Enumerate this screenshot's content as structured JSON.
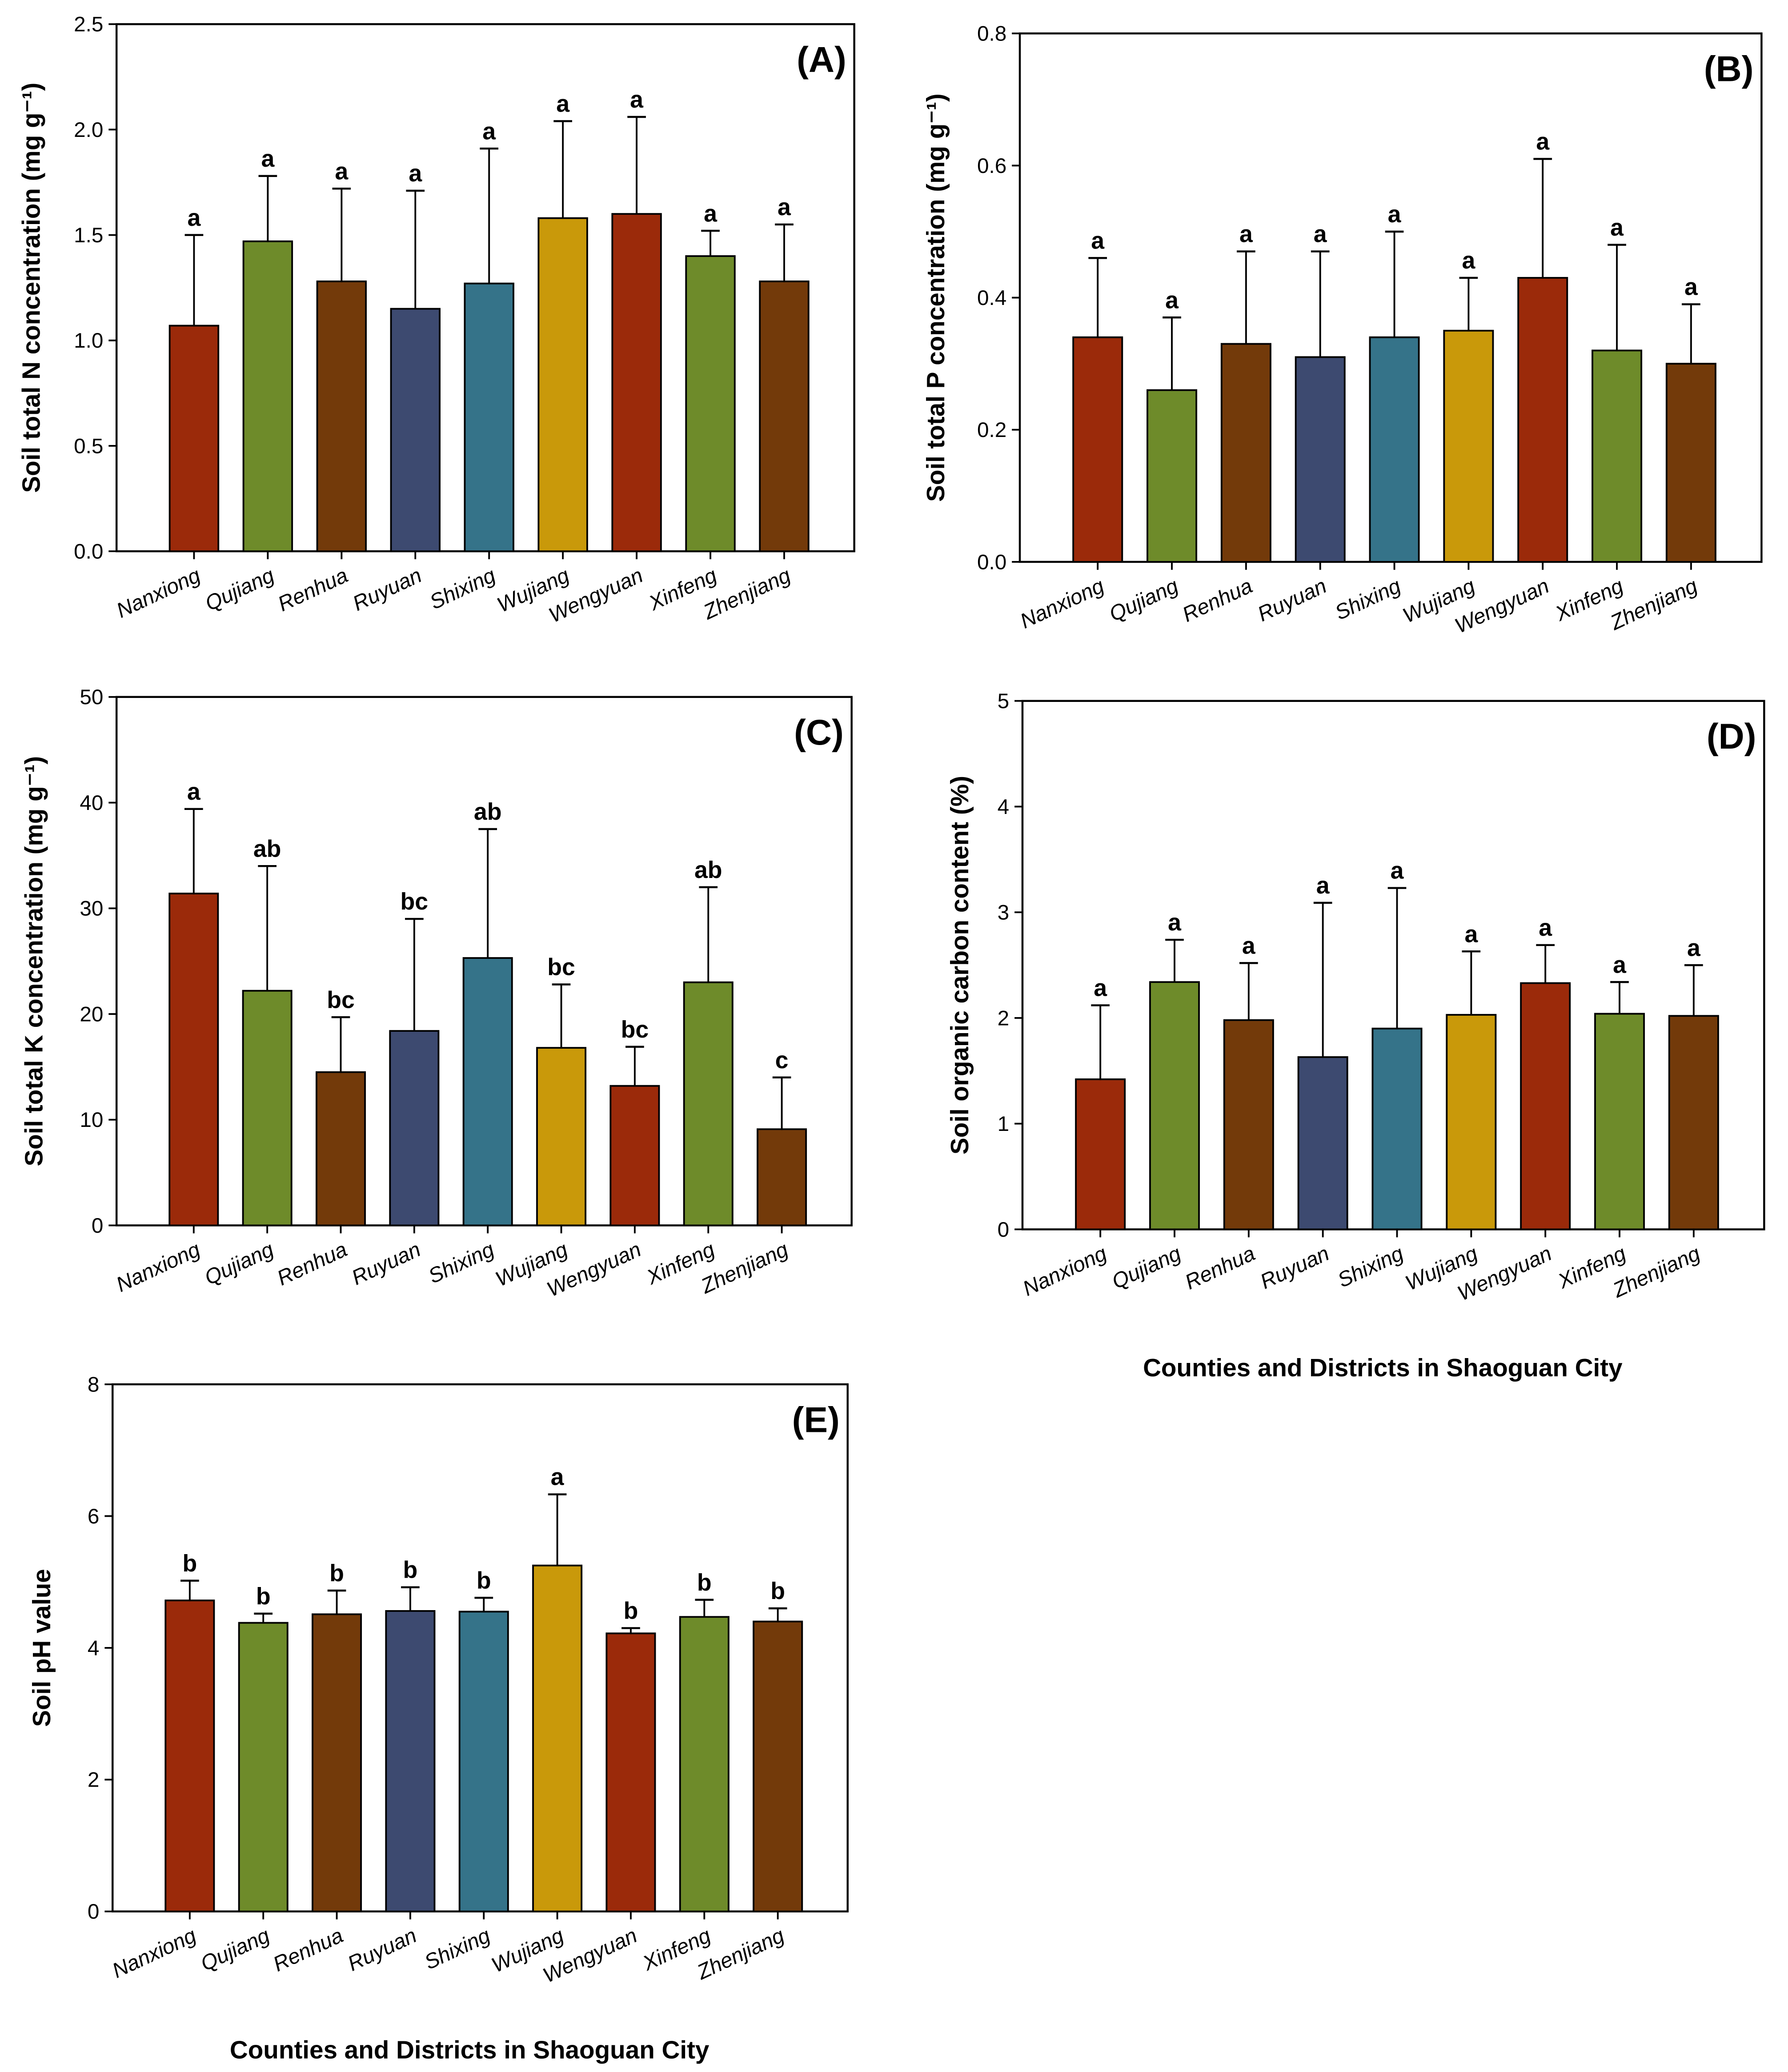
{
  "colors": {
    "red": "#9B2A0A",
    "green": "#6E8B2A",
    "brown": "#733A0A",
    "navy": "#3D4A70",
    "teal": "#357389",
    "gold": "#C9990A"
  },
  "bar_colors": [
    "red",
    "green",
    "brown",
    "navy",
    "teal",
    "gold",
    "red",
    "green",
    "brown"
  ],
  "categories": [
    "Nanxiong",
    "Qujiang",
    "Renhua",
    "Ruyuan",
    "Shixing",
    "Wujiang",
    "Wengyuan",
    "Xinfeng",
    "Zhenjiang"
  ],
  "x_axis_title": "Counties and Districts in Shaoguan City",
  "chart_data": [
    {
      "type": "bar",
      "panel_label": "(A)",
      "ylabel": "Soil total N concentration (mg g⁻¹)",
      "ylim": [
        0,
        2.5
      ],
      "yticks": [
        0,
        0.5,
        1.0,
        1.5,
        2.0,
        2.5
      ],
      "tick_decimals": 1,
      "values": [
        1.07,
        1.47,
        1.28,
        1.15,
        1.27,
        1.58,
        1.6,
        1.4,
        1.28
      ],
      "error_upper": [
        1.5,
        1.78,
        1.72,
        1.71,
        1.91,
        2.04,
        2.06,
        1.52,
        1.55
      ],
      "letters": [
        "a",
        "a",
        "a",
        "a",
        "a",
        "a",
        "a",
        "a",
        "a"
      ],
      "show_xlabel": false
    },
    {
      "type": "bar",
      "panel_label": "(B)",
      "ylabel": "Soil total P concentration (mg g⁻¹)",
      "ylim": [
        0,
        0.8
      ],
      "yticks": [
        0,
        0.2,
        0.4,
        0.6,
        0.8
      ],
      "tick_decimals": 1,
      "values": [
        0.34,
        0.26,
        0.33,
        0.31,
        0.34,
        0.35,
        0.43,
        0.32,
        0.3
      ],
      "error_upper": [
        0.46,
        0.37,
        0.47,
        0.47,
        0.5,
        0.43,
        0.61,
        0.48,
        0.39
      ],
      "letters": [
        "a",
        "a",
        "a",
        "a",
        "a",
        "a",
        "a",
        "a",
        "a"
      ],
      "show_xlabel": false
    },
    {
      "type": "bar",
      "panel_label": "(C)",
      "ylabel": "Soil total K concentration (mg g⁻¹)",
      "ylim": [
        0,
        50
      ],
      "yticks": [
        0,
        10,
        20,
        30,
        40,
        50
      ],
      "tick_decimals": 0,
      "values": [
        31.4,
        22.2,
        14.5,
        18.4,
        25.3,
        16.8,
        13.2,
        23.0,
        9.1
      ],
      "error_upper": [
        39.4,
        34.0,
        19.7,
        29.0,
        37.5,
        22.8,
        16.9,
        32.0,
        14.0
      ],
      "letters": [
        "a",
        "ab",
        "bc",
        "bc",
        "ab",
        "bc",
        "bc",
        "ab",
        "c"
      ],
      "show_xlabel": false
    },
    {
      "type": "bar",
      "panel_label": "(D)",
      "ylabel": "Soil organic carbon content (%)",
      "ylim": [
        0,
        5
      ],
      "yticks": [
        0,
        1,
        2,
        3,
        4,
        5
      ],
      "tick_decimals": 0,
      "values": [
        1.42,
        2.34,
        1.98,
        1.63,
        1.9,
        2.03,
        2.33,
        2.04,
        2.02
      ],
      "error_upper": [
        2.12,
        2.74,
        2.52,
        3.09,
        3.23,
        2.63,
        2.69,
        2.34,
        2.5
      ],
      "letters": [
        "a",
        "a",
        "a",
        "a",
        "a",
        "a",
        "a",
        "a",
        "a"
      ],
      "show_xlabel": true
    },
    {
      "type": "bar",
      "panel_label": "(E)",
      "ylabel": "Soil pH value",
      "ylim": [
        0,
        8
      ],
      "yticks": [
        0,
        2,
        4,
        6,
        8
      ],
      "tick_decimals": 0,
      "values": [
        4.72,
        4.38,
        4.51,
        4.56,
        4.55,
        5.25,
        4.22,
        4.47,
        4.4
      ],
      "error_upper": [
        5.02,
        4.52,
        4.87,
        4.92,
        4.76,
        6.33,
        4.3,
        4.73,
        4.6
      ],
      "letters": [
        "b",
        "b",
        "b",
        "b",
        "b",
        "a",
        "b",
        "b",
        "b"
      ],
      "show_xlabel": true
    }
  ]
}
